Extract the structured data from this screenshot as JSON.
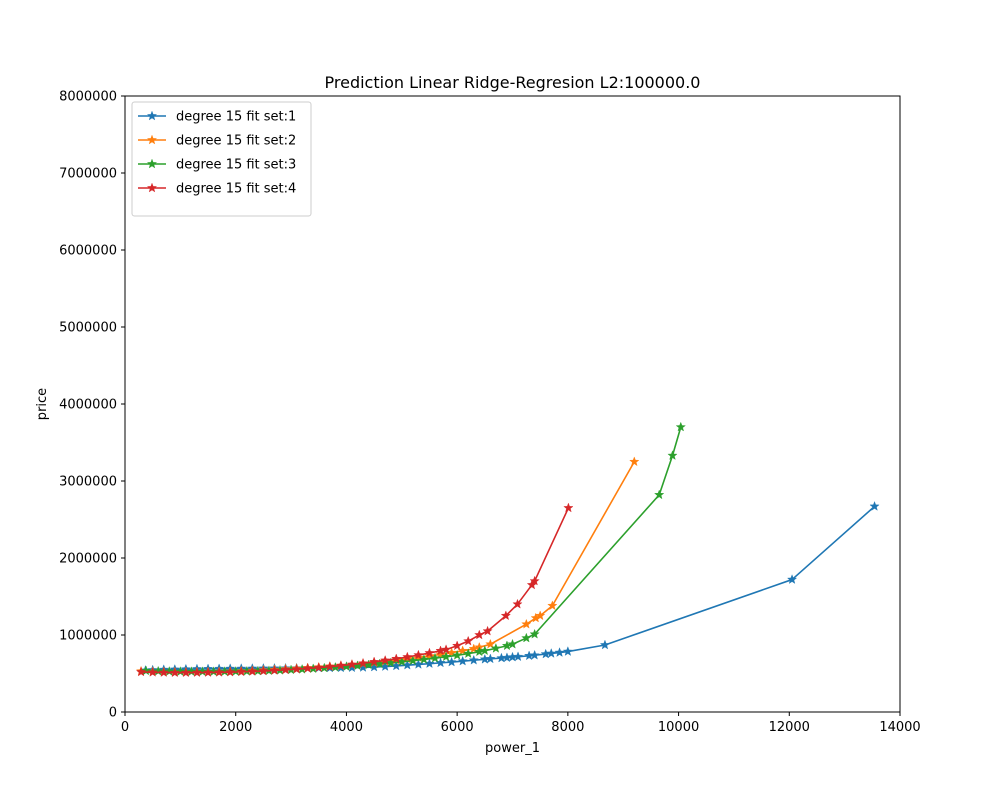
{
  "chart_data": {
    "type": "line",
    "title": "Prediction Linear Ridge-Regresion L2:100000.0",
    "xlabel": "power_1",
    "ylabel": "price",
    "xlim": [
      0,
      14000
    ],
    "ylim": [
      0,
      8000000
    ],
    "xticks": [
      0,
      2000,
      4000,
      6000,
      8000,
      10000,
      12000,
      14000
    ],
    "yticks": [
      0,
      1000000,
      2000000,
      3000000,
      4000000,
      5000000,
      6000000,
      7000000,
      8000000
    ],
    "xtick_labels": [
      "0",
      "2000",
      "4000",
      "6000",
      "8000",
      "10000",
      "12000",
      "14000"
    ],
    "ytick_labels": [
      "0",
      "1000000",
      "2000000",
      "3000000",
      "4000000",
      "5000000",
      "6000000",
      "7000000",
      "8000000"
    ],
    "grid": false,
    "legend_position": "top-left",
    "marker": "star",
    "series": [
      {
        "name": "degree 15 fit set:1",
        "color": "#1f77b4",
        "x": [
          370,
          500,
          700,
          900,
          1100,
          1300,
          1500,
          1700,
          1900,
          2100,
          2300,
          2500,
          2700,
          2900,
          3100,
          3300,
          3500,
          3700,
          3900,
          4100,
          4300,
          4500,
          4700,
          4900,
          5100,
          5300,
          5500,
          5700,
          5900,
          6100,
          6300,
          6500,
          6600,
          6800,
          6900,
          7000,
          7100,
          7300,
          7400,
          7600,
          7700,
          7850,
          8000,
          8670,
          12050,
          13540
        ],
        "y": [
          540000,
          545000,
          550000,
          553000,
          556000,
          558000,
          560000,
          562000,
          563000,
          564000,
          565000,
          566000,
          567000,
          568000,
          569000,
          570000,
          571000,
          572000,
          573000,
          575000,
          578000,
          583000,
          590000,
          598000,
          608000,
          618000,
          628000,
          638000,
          648000,
          660000,
          672000,
          684000,
          690000,
          700000,
          705000,
          712000,
          718000,
          730000,
          737000,
          752000,
          760000,
          772000,
          785000,
          870000,
          1720000,
          2670000
        ]
      },
      {
        "name": "degree 15 fit set:2",
        "color": "#ff7f0e",
        "x": [
          290,
          500,
          700,
          900,
          1100,
          1300,
          1500,
          1700,
          1900,
          2100,
          2300,
          2500,
          2700,
          2900,
          3100,
          3300,
          3500,
          3700,
          3900,
          4100,
          4300,
          4500,
          4700,
          4900,
          5100,
          5300,
          5500,
          5700,
          5900,
          6100,
          6300,
          6400,
          6600,
          7250,
          7420,
          7500,
          7720,
          9200
        ],
        "y": [
          530000,
          525000,
          522000,
          521000,
          521000,
          522000,
          523000,
          525000,
          528000,
          532000,
          537000,
          543000,
          550000,
          557000,
          565000,
          573000,
          582000,
          592000,
          603000,
          615000,
          628000,
          642000,
          657000,
          673000,
          690000,
          708000,
          727000,
          748000,
          770000,
          795000,
          820000,
          840000,
          880000,
          1140000,
          1220000,
          1250000,
          1380000,
          3250000
        ]
      },
      {
        "name": "degree 15 fit set:3",
        "color": "#2ca02c",
        "x": [
          380,
          600,
          800,
          1000,
          1200,
          1400,
          1600,
          1800,
          2000,
          2200,
          2400,
          2600,
          2800,
          3000,
          3200,
          3400,
          3600,
          3800,
          4000,
          4200,
          4400,
          4600,
          4800,
          5000,
          5200,
          5400,
          5600,
          5800,
          6000,
          6200,
          6400,
          6500,
          6700,
          6900,
          7000,
          7250,
          7400,
          9650,
          9890,
          10040
        ],
        "y": [
          535000,
          530000,
          527000,
          525000,
          524000,
          524000,
          524000,
          525000,
          527000,
          529000,
          532000,
          536000,
          541000,
          547000,
          554000,
          562000,
          571000,
          580000,
          590000,
          601000,
          612000,
          624000,
          637000,
          651000,
          666000,
          682000,
          699000,
          717000,
          736000,
          758000,
          782000,
          796000,
          826000,
          860000,
          880000,
          960000,
          1010000,
          2820000,
          3330000,
          3700000
        ]
      },
      {
        "name": "degree 15 fit set:4",
        "color": "#d62728",
        "x": [
          290,
          500,
          700,
          900,
          1100,
          1300,
          1500,
          1700,
          1900,
          2100,
          2300,
          2500,
          2700,
          2900,
          3100,
          3300,
          3500,
          3700,
          3900,
          4100,
          4300,
          4500,
          4700,
          4900,
          5100,
          5300,
          5500,
          5700,
          5800,
          6000,
          6200,
          6400,
          6550,
          6880,
          7090,
          7350,
          7400,
          8010
        ],
        "y": [
          520000,
          515000,
          512000,
          510000,
          510000,
          511000,
          512000,
          514000,
          517000,
          521000,
          526000,
          532000,
          539000,
          547000,
          556000,
          566000,
          577000,
          589000,
          602000,
          617000,
          633000,
          651000,
          670000,
          691000,
          714000,
          739000,
          766000,
          795000,
          810000,
          860000,
          920000,
          1000000,
          1050000,
          1250000,
          1400000,
          1650000,
          1700000,
          2650000
        ]
      }
    ]
  }
}
